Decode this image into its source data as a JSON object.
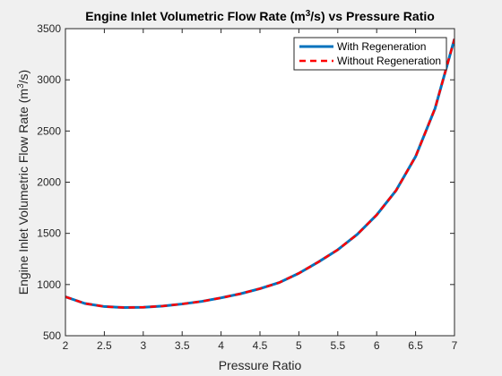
{
  "chart_data": {
    "type": "line",
    "title": {
      "prefix": "Engine Inlet Volumetric Flow Rate (m",
      "sup": "3",
      "suffix": "/s) vs Pressure Ratio"
    },
    "xlabel": "Pressure Ratio",
    "ylabel": {
      "prefix": "Engine Inlet Volumetric Flow Rate (m",
      "sup": "3",
      "suffix": "/s)"
    },
    "xlim": [
      2,
      7
    ],
    "ylim": [
      500,
      3500
    ],
    "xticks": [
      2,
      2.5,
      3,
      3.5,
      4,
      4.5,
      5,
      5.5,
      6,
      6.5,
      7
    ],
    "yticks": [
      500,
      1000,
      1500,
      2000,
      2500,
      3000,
      3500
    ],
    "legend_position": "top-right",
    "colors": {
      "with": "#0072bd",
      "without": "#ff0000",
      "axes_bg": "#ffffff",
      "figure_bg": "#f0f0f0",
      "axis": "#262626"
    },
    "x": [
      2.0,
      2.25,
      2.5,
      2.75,
      3.0,
      3.25,
      3.5,
      3.75,
      4.0,
      4.25,
      4.5,
      4.75,
      5.0,
      5.25,
      5.5,
      5.75,
      6.0,
      6.25,
      6.5,
      6.75,
      7.0
    ],
    "series": [
      {
        "name": "With Regeneration",
        "style": "solid",
        "values": [
          880,
          815,
          785,
          775,
          778,
          790,
          810,
          835,
          870,
          910,
          960,
          1020,
          1110,
          1220,
          1340,
          1490,
          1680,
          1920,
          2250,
          2720,
          3400
        ]
      },
      {
        "name": "Without Regeneration",
        "style": "dashed",
        "values": [
          880,
          815,
          785,
          775,
          778,
          790,
          810,
          835,
          870,
          910,
          960,
          1020,
          1110,
          1220,
          1340,
          1490,
          1680,
          1920,
          2250,
          2720,
          3400
        ]
      }
    ]
  }
}
